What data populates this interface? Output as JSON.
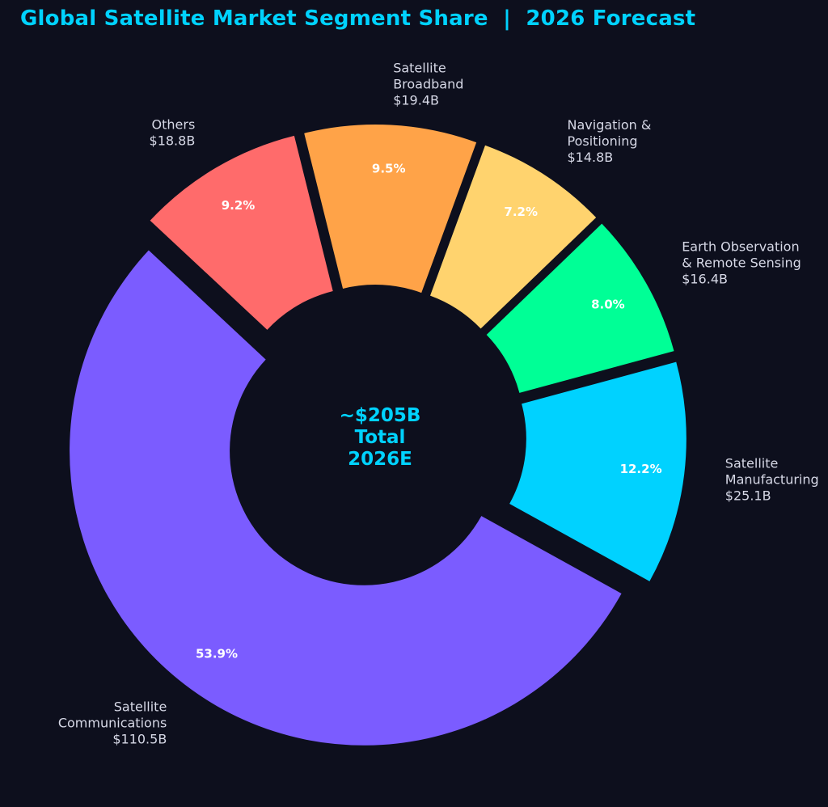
{
  "chart_data": {
    "type": "pie",
    "style": "donut",
    "title": "Global Satellite Market Segment Share  |  2026 Forecast",
    "center_label": [
      "~$205B",
      "Total",
      "2026E"
    ],
    "slices": [
      {
        "name": "Satellite Communications",
        "label_lines": [
          "Satellite",
          "Communications",
          "$110.5B"
        ],
        "value": 110.5,
        "percent_label": "53.9%",
        "color": "#7b5cff"
      },
      {
        "name": "Satellite Manufacturing",
        "label_lines": [
          "Satellite",
          "Manufacturing",
          "$25.1B"
        ],
        "value": 25.1,
        "percent_label": "12.2%",
        "color": "#00d2ff"
      },
      {
        "name": "Earth Observation & Remote Sensing",
        "label_lines": [
          "Earth Observation",
          "& Remote Sensing",
          "$16.4B"
        ],
        "value": 16.4,
        "percent_label": "8.0%",
        "color": "#00ff96"
      },
      {
        "name": "Navigation & Positioning",
        "label_lines": [
          "Navigation &",
          "Positioning",
          "$14.8B"
        ],
        "value": 14.8,
        "percent_label": "7.2%",
        "color": "#ffd36e"
      },
      {
        "name": "Satellite Broadband",
        "label_lines": [
          "Satellite",
          "Broadband",
          "$19.4B"
        ],
        "value": 19.4,
        "percent_label": "9.5%",
        "color": "#ffa348"
      },
      {
        "name": "Others",
        "label_lines": [
          "Others",
          "$18.8B"
        ],
        "value": 18.8,
        "percent_label": "9.2%",
        "color": "#ff6b6b"
      }
    ],
    "start_angle_deg": 137,
    "direction": "counterclockwise",
    "background_color": "#0d0f1d"
  }
}
